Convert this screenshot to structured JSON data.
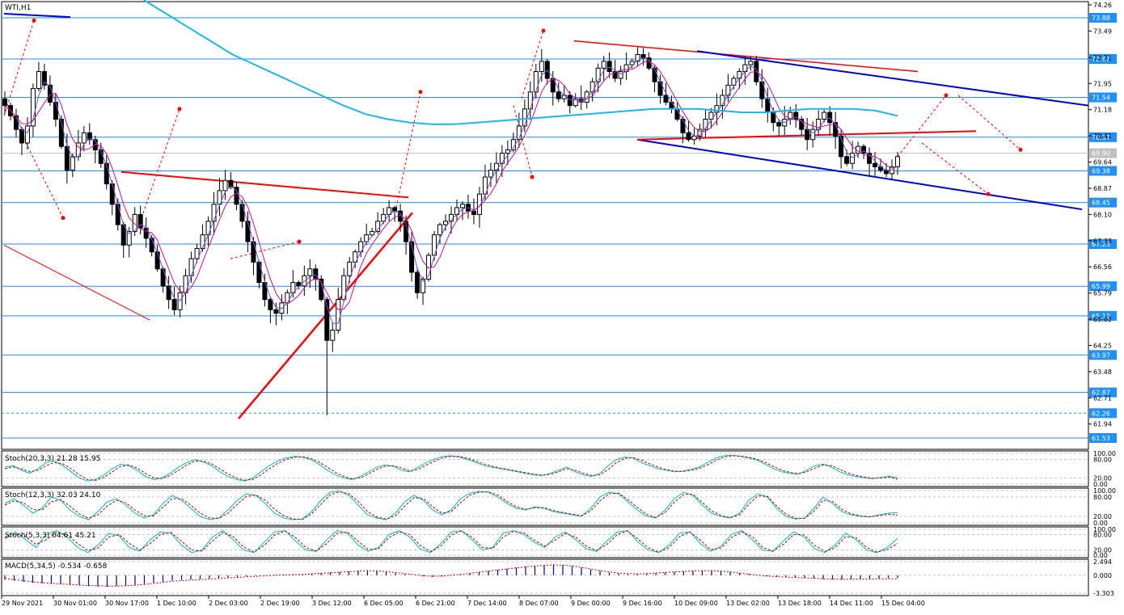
{
  "chart_data": [
    {
      "type": "candlestick",
      "title": "WTI,H1",
      "price_axis_ticks": [
        "74.26",
        "73.49",
        "72.71",
        "71.95",
        "71.18",
        "70.41",
        "69.64",
        "68.87",
        "68.10",
        "67.33",
        "66.56",
        "65.79",
        "65.02",
        "64.25",
        "63.48",
        "62.71",
        "61.94"
      ],
      "price_range": [
        61.53,
        74.26
      ],
      "horizontal_levels": [
        {
          "value": 73.88,
          "label": "73.88",
          "color": "#1e90ff"
        },
        {
          "value": 72.67,
          "label": "72.67",
          "color": "#1e90ff"
        },
        {
          "value": 71.54,
          "label": "71.54",
          "color": "#1e90ff"
        },
        {
          "value": 70.37,
          "label": "70.37",
          "color": "#1e90ff"
        },
        {
          "value": 69.9,
          "label": "69.90",
          "color": "#c0c0c0"
        },
        {
          "value": 69.38,
          "label": "69.38",
          "color": "#1e90ff"
        },
        {
          "value": 68.45,
          "label": "68.45",
          "color": "#1e90ff"
        },
        {
          "value": 67.23,
          "label": "67.23",
          "color": "#1e90ff"
        },
        {
          "value": 65.99,
          "label": "65.99",
          "color": "#1e90ff"
        },
        {
          "value": 65.12,
          "label": "65.12",
          "color": "#1e90ff"
        },
        {
          "value": 63.97,
          "label": "63.97",
          "color": "#1e90ff"
        },
        {
          "value": 62.87,
          "label": "62.87",
          "color": "#1e90ff"
        },
        {
          "value": 62.26,
          "label": "62.26",
          "color": "#1e90ff"
        },
        {
          "value": 61.53,
          "label": "61.53",
          "color": "#1e90ff"
        }
      ],
      "close_series": [
        71.3,
        71.0,
        70.6,
        70.2,
        70.7,
        71.8,
        72.3,
        71.9,
        71.4,
        70.9,
        70.1,
        69.4,
        69.8,
        70.2,
        70.5,
        70.3,
        70.0,
        69.6,
        69.0,
        68.4,
        67.8,
        67.2,
        67.6,
        68.1,
        67.7,
        67.4,
        67.0,
        66.5,
        66.0,
        65.6,
        65.3,
        65.8,
        66.3,
        66.8,
        67.1,
        67.5,
        67.9,
        68.4,
        68.8,
        69.1,
        68.9,
        68.4,
        67.9,
        67.3,
        66.7,
        66.1,
        65.6,
        65.3,
        65.2,
        65.5,
        65.8,
        66.1,
        66.0,
        66.3,
        66.5,
        66.2,
        65.6,
        64.4,
        64.7,
        65.6,
        66.3,
        66.7,
        67.0,
        67.3,
        67.5,
        67.6,
        67.9,
        68.1,
        68.3,
        68.2,
        67.9,
        67.3,
        66.4,
        65.8,
        66.2,
        66.9,
        67.5,
        67.8,
        67.9,
        68.1,
        68.3,
        68.4,
        68.2,
        68.1,
        68.7,
        69.2,
        69.4,
        69.6,
        69.9,
        70.0,
        70.3,
        70.7,
        71.2,
        71.7,
        72.3,
        72.6,
        72.1,
        71.7,
        71.5,
        71.6,
        71.3,
        71.5,
        71.4,
        71.7,
        72.0,
        72.4,
        72.6,
        72.3,
        72.1,
        72.3,
        72.5,
        72.6,
        72.8,
        72.7,
        72.4,
        72.0,
        71.6,
        71.4,
        71.2,
        70.9,
        70.5,
        70.3,
        70.4,
        70.6,
        70.9,
        71.1,
        71.3,
        71.6,
        71.9,
        72.1,
        72.3,
        72.5,
        72.6,
        72.0,
        71.5,
        71.1,
        70.8,
        70.7,
        70.9,
        71.1,
        70.9,
        70.6,
        70.3,
        70.6,
        70.9,
        71.1,
        70.8,
        70.4,
        69.8,
        69.6,
        69.9,
        70.1,
        69.9,
        69.6,
        69.5,
        69.4,
        69.3,
        69.5,
        69.8
      ]
    },
    {
      "type": "line",
      "title": "Stoch(20,3,3) 21.28 15.95",
      "ylim": [
        0,
        100
      ],
      "axis_ticks": [
        "100.00",
        "80.00",
        "20.00",
        "0.00"
      ],
      "series": [
        {
          "values": [
            55,
            60,
            45,
            35,
            50,
            70,
            75,
            60,
            40,
            20,
            10,
            15,
            30,
            50,
            65,
            60,
            45,
            25,
            15,
            20,
            35,
            55,
            70,
            80,
            72,
            60,
            40,
            25,
            15,
            10,
            20,
            40,
            60,
            75,
            85,
            90,
            88,
            80,
            65,
            45,
            30,
            20,
            15,
            25,
            40,
            55,
            62,
            58,
            45,
            40,
            55,
            70,
            82,
            90,
            92,
            88,
            80,
            70,
            60,
            55,
            50,
            45,
            40,
            35,
            30,
            28,
            35,
            45,
            55,
            40,
            30,
            25,
            35,
            60,
            80,
            88,
            85,
            70,
            60,
            50,
            45,
            40,
            42,
            48,
            55,
            70,
            85,
            92,
            94,
            90,
            85,
            78,
            65,
            50,
            40,
            35,
            32,
            45,
            60,
            65,
            55,
            40,
            30,
            25,
            20,
            18,
            22,
            25,
            21
          ]
        },
        {
          "values": [
            50,
            56,
            50,
            40,
            45,
            60,
            70,
            66,
            50,
            30,
            15,
            12,
            22,
            40,
            58,
            62,
            52,
            35,
            20,
            18,
            28,
            45,
            62,
            75,
            75,
            66,
            50,
            33,
            20,
            13,
            15,
            30,
            50,
            67,
            80,
            87,
            89,
            84,
            72,
            55,
            38,
            25,
            17,
            20,
            33,
            48,
            58,
            60,
            52,
            43,
            48,
            62,
            75,
            86,
            90,
            90,
            84,
            75,
            65,
            58,
            52,
            47,
            42,
            37,
            32,
            29,
            32,
            40,
            50,
            45,
            35,
            28,
            30,
            48,
            70,
            84,
            86,
            78,
            66,
            55,
            48,
            42,
            41,
            45,
            51,
            62,
            77,
            88,
            92,
            91,
            87,
            81,
            70,
            57,
            45,
            38,
            34,
            40,
            52,
            62,
            60,
            48,
            36,
            28,
            23,
            19,
            20,
            23,
            15.95
          ]
        }
      ]
    },
    {
      "type": "line",
      "title": "Stoch(12,3,3) 32.03 24.10",
      "ylim": [
        0,
        100
      ],
      "axis_ticks": [
        "100.00",
        "80.00",
        "20.00",
        "0.00"
      ],
      "series": [
        {
          "values": [
            60,
            75,
            55,
            30,
            45,
            80,
            70,
            40,
            20,
            10,
            35,
            65,
            75,
            55,
            30,
            15,
            25,
            60,
            85,
            70,
            45,
            20,
            10,
            15,
            40,
            70,
            90,
            85,
            60,
            30,
            15,
            10,
            12,
            35,
            70,
            95,
            98,
            85,
            55,
            25,
            15,
            10,
            30,
            65,
            85,
            70,
            40,
            25,
            40,
            75,
            92,
            97,
            95,
            80,
            60,
            45,
            40,
            50,
            45,
            35,
            30,
            25,
            20,
            45,
            80,
            95,
            90,
            65,
            40,
            20,
            15,
            40,
            75,
            95,
            85,
            55,
            30,
            20,
            15,
            30,
            70,
            90,
            80,
            45,
            20,
            12,
            15,
            45,
            80,
            60,
            35,
            25,
            20,
            18,
            25,
            30,
            32
          ]
        },
        {
          "values": [
            55,
            68,
            62,
            42,
            40,
            65,
            72,
            52,
            28,
            14,
            25,
            52,
            70,
            62,
            40,
            22,
            22,
            48,
            75,
            75,
            55,
            30,
            15,
            14,
            30,
            58,
            82,
            86,
            70,
            42,
            22,
            12,
            11,
            28,
            58,
            87,
            96,
            90,
            66,
            35,
            18,
            12,
            22,
            52,
            78,
            75,
            50,
            30,
            35,
            62,
            86,
            95,
            96,
            86,
            66,
            50,
            42,
            47,
            47,
            38,
            32,
            27,
            22,
            37,
            68,
            90,
            92,
            72,
            48,
            26,
            17,
            32,
            64,
            88,
            88,
            63,
            37,
            23,
            16,
            25,
            58,
            84,
            82,
            52,
            27,
            14,
            14,
            36,
            70,
            66,
            42,
            28,
            22,
            19,
            22,
            27,
            24.1
          ]
        }
      ]
    },
    {
      "type": "line",
      "title": "Stoch(5,3,3) 64.61 45.21",
      "ylim": [
        0,
        100
      ],
      "axis_ticks": [
        "100.00",
        "80.00",
        "20.00",
        "0.00"
      ],
      "series": [
        {
          "values": [
            70,
            90,
            60,
            30,
            80,
            95,
            70,
            30,
            10,
            40,
            85,
            75,
            30,
            15,
            60,
            90,
            85,
            40,
            10,
            20,
            70,
            95,
            60,
            20,
            10,
            50,
            90,
            95,
            55,
            20,
            15,
            60,
            95,
            85,
            40,
            15,
            30,
            80,
            95,
            70,
            25,
            10,
            45,
            90,
            95,
            60,
            20,
            30,
            85,
            95,
            80,
            50,
            30,
            70,
            90,
            60,
            25,
            15,
            55,
            90,
            95,
            50,
            20,
            10,
            40,
            85,
            90,
            45,
            15,
            35,
            80,
            95,
            60,
            20,
            15,
            55,
            90,
            70,
            25,
            10,
            40,
            85,
            60,
            20,
            10,
            30,
            65
          ]
        },
        {
          "values": [
            65,
            82,
            72,
            42,
            60,
            88,
            80,
            45,
            18,
            28,
            70,
            80,
            45,
            20,
            45,
            80,
            88,
            55,
            20,
            16,
            55,
            88,
            72,
            32,
            12,
            38,
            78,
            94,
            68,
            30,
            16,
            45,
            85,
            90,
            55,
            22,
            25,
            68,
            90,
            80,
            38,
            14,
            35,
            78,
            94,
            70,
            30,
            26,
            70,
            92,
            86,
            58,
            35,
            58,
            84,
            70,
            35,
            18,
            42,
            80,
            94,
            62,
            28,
            12,
            30,
            72,
            90,
            58,
            22,
            28,
            68,
            90,
            72,
            30,
            16,
            42,
            80,
            78,
            38,
            14,
            30,
            72,
            68,
            30,
            12,
            22,
            45.21
          ]
        }
      ]
    },
    {
      "type": "bar",
      "title": "MACD(5,34,5) -0.534 -0.658",
      "ylim": [
        -3.303,
        2.494
      ],
      "axis_ticks": [
        "2.494",
        "0.000",
        "-3.303"
      ],
      "series": [
        {
          "values": [
            -0.8,
            -1.0,
            -1.2,
            -1.4,
            -1.5,
            -1.6,
            -1.7,
            -1.8,
            -1.9,
            -2.0,
            -2.05,
            -2.1,
            -2.0,
            -1.9,
            -1.8,
            -1.6,
            -1.4,
            -1.2,
            -1.0,
            -0.9,
            -0.8,
            -0.7,
            -0.6,
            -0.5,
            -0.4,
            -0.3,
            -0.2,
            -0.1,
            0.0,
            0.05,
            0.1,
            0.15,
            0.2,
            0.3,
            0.4,
            0.5,
            0.6,
            0.7,
            0.8,
            0.9,
            0.8,
            0.6,
            0.4,
            0.2,
            0.0,
            -0.2,
            -0.3,
            -0.2,
            0.0,
            0.2,
            0.4,
            0.6,
            0.8,
            1.0,
            1.2,
            1.4,
            1.6,
            1.8,
            1.9,
            2.0,
            1.9,
            1.7,
            1.4,
            1.1,
            0.8,
            0.5,
            0.3,
            0.2,
            0.2,
            0.3,
            0.4,
            0.5,
            0.6,
            0.7,
            0.8,
            0.9,
            0.9,
            0.8,
            0.6,
            0.4,
            0.2,
            0.0,
            -0.2,
            -0.3,
            -0.4,
            -0.4,
            -0.5,
            -0.6,
            -0.7,
            -0.75,
            -0.8,
            -0.75,
            -0.7,
            -0.65,
            -0.6,
            -0.55,
            -0.534
          ]
        },
        {
          "values": [
            -0.6,
            -0.8,
            -1.0,
            -1.2,
            -1.35,
            -1.5,
            -1.6,
            -1.7,
            -1.8,
            -1.9,
            -1.95,
            -2.0,
            -2.0,
            -1.95,
            -1.85,
            -1.7,
            -1.5,
            -1.3,
            -1.1,
            -1.0,
            -0.9,
            -0.8,
            -0.7,
            -0.6,
            -0.5,
            -0.4,
            -0.3,
            -0.2,
            -0.1,
            0.0,
            0.05,
            0.1,
            0.15,
            0.25,
            0.35,
            0.45,
            0.55,
            0.65,
            0.75,
            0.85,
            0.8,
            0.65,
            0.5,
            0.3,
            0.1,
            -0.1,
            -0.2,
            -0.15,
            0.0,
            0.15,
            0.35,
            0.55,
            0.75,
            0.95,
            1.15,
            1.35,
            1.55,
            1.7,
            1.8,
            1.9,
            1.85,
            1.7,
            1.45,
            1.15,
            0.85,
            0.6,
            0.4,
            0.3,
            0.25,
            0.3,
            0.4,
            0.5,
            0.6,
            0.7,
            0.8,
            0.85,
            0.85,
            0.75,
            0.6,
            0.4,
            0.2,
            0.0,
            -0.15,
            -0.25,
            -0.35,
            -0.4,
            -0.5,
            -0.55,
            -0.65,
            -0.7,
            -0.75,
            -0.72,
            -0.7,
            -0.68,
            -0.66,
            -0.66,
            -0.658
          ]
        }
      ]
    }
  ],
  "time_axis": [
    "29 Nov 2021",
    "30 Nov 01:00",
    "30 Nov 17:00",
    "1 Dec 10:00",
    "2 Dec 03:00",
    "2 Dec 19:00",
    "3 Dec 12:00",
    "6 Dec 05:00",
    "6 Dec 21:00",
    "7 Dec 14:00",
    "8 Dec 07:00",
    "9 Dec 00:00",
    "9 Dec 16:00",
    "10 Dec 09:00",
    "13 Dec 02:00",
    "13 Dec 18:00",
    "14 Dec 11:00",
    "15 Dec 04:00"
  ],
  "colors": {
    "candle": "#000000",
    "level_line": "#1e90ff",
    "ma_long": "#1eb4f0",
    "ma_fast": "#6a5acd",
    "ma_slow": "#c71585",
    "trend_red": "#ff0000",
    "trend_blue": "#0000cd",
    "stoch_main": "#00bfbf",
    "stoch_signal": "#c00000",
    "macd_hist": "#00008b",
    "macd_signal": "#c00000"
  }
}
